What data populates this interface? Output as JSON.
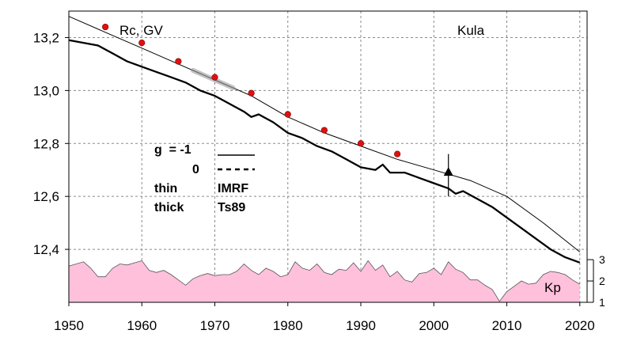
{
  "chart_data": {
    "type": "line",
    "xlabel": "",
    "ylabel": "",
    "xlim": [
      1950,
      2021
    ],
    "ylim": [
      12.2,
      13.3
    ],
    "xticks": [
      "1950",
      "1960",
      "1970",
      "1980",
      "1990",
      "2000",
      "2010",
      "2020"
    ],
    "yticks": [
      "12,4",
      "12,6",
      "12,8",
      "13,0",
      "13,2"
    ],
    "kp_ticks": [
      "1",
      "2",
      "3"
    ],
    "kp_range": [
      1,
      3.3
    ],
    "grid": true,
    "annotations": {
      "top_left": "Rc, GV",
      "top_right": "Kula",
      "kp_label": "Kp"
    },
    "legend": {
      "row1_label": "g  = -1",
      "row2_label": "0",
      "row3_left": "thin",
      "row3_right": "IMRF",
      "row4_left": "thick",
      "row4_right": "Ts89"
    },
    "series": [
      {
        "name": "IMRF",
        "style": "thin",
        "x": [
          1950,
          1955,
          1960,
          1965,
          1970,
          1975,
          1980,
          1985,
          1990,
          1995,
          2000,
          2005,
          2010,
          2015,
          2020
        ],
        "y": [
          13.28,
          13.22,
          13.16,
          13.1,
          13.04,
          12.98,
          12.9,
          12.84,
          12.79,
          12.74,
          12.7,
          12.66,
          12.6,
          12.5,
          12.39
        ]
      },
      {
        "name": "Ts89",
        "style": "thick",
        "x": [
          1950,
          1952,
          1954,
          1956,
          1958,
          1960,
          1962,
          1964,
          1966,
          1968,
          1970,
          1972,
          1974,
          1975,
          1976,
          1978,
          1980,
          1982,
          1984,
          1986,
          1988,
          1990,
          1992,
          1993,
          1994,
          1996,
          1998,
          2000,
          2002,
          2003,
          2004,
          2006,
          2008,
          2010,
          2012,
          2014,
          2016,
          2018,
          2020
        ],
        "y": [
          13.19,
          13.18,
          13.17,
          13.14,
          13.11,
          13.09,
          13.07,
          13.05,
          13.03,
          13.0,
          12.98,
          12.95,
          12.92,
          12.9,
          12.91,
          12.88,
          12.84,
          12.82,
          12.79,
          12.77,
          12.74,
          12.71,
          12.7,
          12.72,
          12.69,
          12.69,
          12.67,
          12.65,
          12.63,
          12.61,
          12.62,
          12.59,
          12.56,
          12.52,
          12.48,
          12.44,
          12.4,
          12.37,
          12.35
        ]
      },
      {
        "name": "dots",
        "style": "red-dots",
        "x": [
          1955,
          1960,
          1965,
          1970,
          1975,
          1980,
          1985,
          1990,
          1995
        ],
        "y": [
          13.24,
          13.18,
          13.11,
          13.05,
          12.99,
          12.91,
          12.85,
          12.8,
          12.76
        ]
      },
      {
        "name": "Kp",
        "style": "area",
        "x": [
          1950,
          1952,
          1953,
          1954,
          1955,
          1956,
          1957,
          1958,
          1959,
          1960,
          1961,
          1962,
          1963,
          1964,
          1965,
          1966,
          1967,
          1968,
          1969,
          1970,
          1971,
          1972,
          1973,
          1974,
          1975,
          1976,
          1977,
          1978,
          1979,
          1980,
          1981,
          1982,
          1983,
          1984,
          1985,
          1986,
          1987,
          1988,
          1989,
          1990,
          1991,
          1992,
          1993,
          1994,
          1995,
          1996,
          1997,
          1998,
          1999,
          2000,
          2001,
          2002,
          2003,
          2004,
          2005,
          2006,
          2007,
          2008,
          2009,
          2010,
          2011,
          2012,
          2013,
          2014,
          2015,
          2016,
          2017,
          2018,
          2019,
          2020
        ],
        "y": [
          2.7,
          2.9,
          2.6,
          2.2,
          2.2,
          2.6,
          2.8,
          2.75,
          2.85,
          2.95,
          2.5,
          2.4,
          2.5,
          2.3,
          2.05,
          1.8,
          2.1,
          2.25,
          2.35,
          2.25,
          2.3,
          2.3,
          2.45,
          2.8,
          2.5,
          2.3,
          2.6,
          2.45,
          2.2,
          2.3,
          2.9,
          2.6,
          2.5,
          2.8,
          2.4,
          2.3,
          2.55,
          2.5,
          2.85,
          2.45,
          2.95,
          2.5,
          2.75,
          2.2,
          2.45,
          2.05,
          1.95,
          2.35,
          2.4,
          2.6,
          2.3,
          2.9,
          2.55,
          2.4,
          2.05,
          2.05,
          1.8,
          1.6,
          1.05,
          1.5,
          1.75,
          2.0,
          1.85,
          1.9,
          2.3,
          2.45,
          2.4,
          2.3,
          2.05,
          1.85
        ]
      }
    ],
    "marker": {
      "x": 2002,
      "y": 12.69,
      "shape": "triangle-with-errorbar",
      "err": [
        12.6,
        12.76
      ]
    },
    "colors": {
      "kp_fill": "#ffc0dc",
      "dots": "#e01010",
      "grid": "#8a8a8a",
      "lines": "#000000"
    }
  }
}
